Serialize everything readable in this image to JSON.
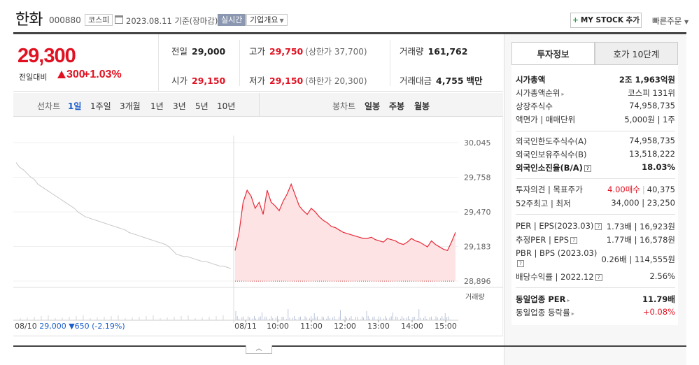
{
  "header": {
    "name": "한화",
    "code": "000880",
    "market": "코스피",
    "date": "2023.08.11 기준(장마감)",
    "realtime": "실시간",
    "company_info": "기업개요",
    "mystock": "MY STOCK 추가",
    "quick_order": "빠른주문"
  },
  "summary": {
    "price": "29,300",
    "change_label": "전일대비",
    "change_value": "300",
    "change_pct": "+1.03%",
    "prev_label": "전일",
    "prev_value": "29,000",
    "high_label": "고가",
    "high_value": "29,750",
    "upper_limit": "(상한가 37,700)",
    "volume_label": "거래량",
    "volume_value": "161,762",
    "open_label": "시가",
    "open_value": "29,150",
    "low_label": "저가",
    "low_value": "29,150",
    "lower_limit": "(하한가 20,300)",
    "amount_label": "거래대금",
    "amount_value": "4,755",
    "amount_unit": "백만"
  },
  "chart_tabs": {
    "line_label": "선차트",
    "periods": [
      "1일",
      "1주일",
      "3개월",
      "1년",
      "3년",
      "5년",
      "10년"
    ],
    "active": "1일",
    "candle_label": "봉차트",
    "candles": [
      "일봉",
      "주봉",
      "월봉"
    ]
  },
  "chart_data": {
    "type": "line",
    "y_ticks": [
      "30,045",
      "29,758",
      "29,470",
      "29,183",
      "28,896"
    ],
    "ylim": [
      28896,
      30045
    ],
    "x_ticks": [
      "08/11",
      "10:00",
      "11:00",
      "12:00",
      "13:00",
      "14:00",
      "15:00"
    ],
    "volume_label": "거래량",
    "prev_day_summary": {
      "date": "08/10",
      "close": "29,000",
      "change": "▼650 (-2.19%)"
    },
    "prev_day_series": [
      29880,
      29840,
      29820,
      29790,
      29760,
      29740,
      29700,
      29680,
      29660,
      29640,
      29620,
      29600,
      29580,
      29560,
      29540,
      29520,
      29500,
      29470,
      29450,
      29430,
      29420,
      29410,
      29400,
      29390,
      29380,
      29370,
      29360,
      29350,
      29340,
      29330,
      29320,
      29300,
      29290,
      29280,
      29270,
      29260,
      29250,
      29240,
      29230,
      29220,
      29210,
      29200,
      29180,
      29150,
      29120,
      29110,
      29100,
      29100,
      29090,
      29080,
      29070,
      29060,
      29060,
      29050,
      29040,
      29030,
      29020,
      29020,
      29010,
      29000
    ],
    "today_series": [
      29150,
      29300,
      29550,
      29650,
      29600,
      29500,
      29550,
      29450,
      29650,
      29550,
      29520,
      29480,
      29560,
      29620,
      29700,
      29610,
      29520,
      29480,
      29450,
      29500,
      29470,
      29430,
      29400,
      29380,
      29350,
      29340,
      29320,
      29300,
      29290,
      29280,
      29270,
      29260,
      29250,
      29250,
      29260,
      29240,
      29230,
      29220,
      29250,
      29240,
      29230,
      29210,
      29200,
      29220,
      29250,
      29230,
      29220,
      29200,
      29180,
      29230,
      29200,
      29180,
      29160,
      29150,
      29220,
      29300
    ],
    "baseline": 29000,
    "colors": {
      "prev": "#c8c8c8",
      "today": "#e82a38",
      "fill": "#fde3e4"
    }
  },
  "right_panel": {
    "tabs": [
      "투자정보",
      "호가 10단계"
    ],
    "rows": [
      {
        "k": "시가총액",
        "v": "2조 1,963억원",
        "bold": true
      },
      {
        "k": "시가총액순위",
        "v": "코스피 131위"
      },
      {
        "k": "상장주식수",
        "v": "74,958,735"
      },
      {
        "k": "액면가 | 매매단위",
        "v": "5,000원 | 1주"
      },
      {
        "k": "외국인한도주식수(A)",
        "v": "74,958,735"
      },
      {
        "k": "외국인보유주식수(B)",
        "v": "13,518,222"
      },
      {
        "k": "외국인소진율(B/A)",
        "v": "18.03%",
        "bold": true
      },
      {
        "k": "투자의견 | 목표주가",
        "v_up": "4.00매수",
        "v": "40,375"
      },
      {
        "k": "52주최고 | 최저",
        "v": "34,000 | 23,250"
      },
      {
        "k": "PER | EPS(2023.03)",
        "v": "1.73배 | 16,923원"
      },
      {
        "k": "추정PER | EPS",
        "v": "1.77배 | 16,578원"
      },
      {
        "k": "PBR | BPS (2023.03)",
        "v": "0.26배 | 114,555원"
      },
      {
        "k": "배당수익률 | 2022.12",
        "v": "2.56%"
      },
      {
        "k": "동일업종 PER",
        "v": "11.79배",
        "bold": true
      },
      {
        "k": "동일업종 등락률",
        "v": "+0.08%"
      }
    ]
  }
}
